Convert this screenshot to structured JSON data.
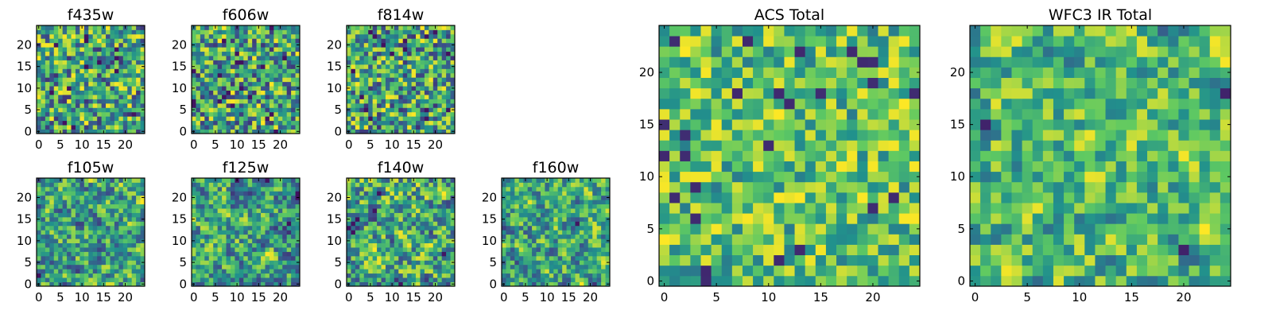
{
  "chart_data": [
    {
      "type": "heatmap",
      "title": "f435w",
      "size": 25,
      "colormap": "viridis",
      "ticks": [
        0,
        5,
        10,
        15,
        20
      ],
      "xlim": [
        0,
        24
      ],
      "ylim": [
        0,
        24
      ],
      "seed": 11,
      "smooth": 0,
      "vmin_frac": 0.15
    },
    {
      "type": "heatmap",
      "title": "f606w",
      "size": 25,
      "colormap": "viridis",
      "ticks": [
        0,
        5,
        10,
        15,
        20
      ],
      "xlim": [
        0,
        24
      ],
      "ylim": [
        0,
        24
      ],
      "seed": 23,
      "smooth": 0,
      "vmin_frac": 0.15
    },
    {
      "type": "heatmap",
      "title": "f814w",
      "size": 25,
      "colormap": "viridis",
      "ticks": [
        0,
        5,
        10,
        15,
        20
      ],
      "xlim": [
        0,
        24
      ],
      "ylim": [
        0,
        24
      ],
      "seed": 37,
      "smooth": 0,
      "vmin_frac": 0.15
    },
    {
      "type": "heatmap",
      "title": "f105w",
      "size": 25,
      "colormap": "viridis",
      "ticks": [
        0,
        5,
        10,
        15,
        20
      ],
      "xlim": [
        0,
        24
      ],
      "ylim": [
        0,
        24
      ],
      "seed": 41,
      "smooth": 1,
      "vmin_frac": 0.15
    },
    {
      "type": "heatmap",
      "title": "f125w",
      "size": 25,
      "colormap": "viridis",
      "ticks": [
        0,
        5,
        10,
        15,
        20
      ],
      "xlim": [
        0,
        24
      ],
      "ylim": [
        0,
        24
      ],
      "seed": 53,
      "smooth": 1,
      "vmin_frac": 0.15
    },
    {
      "type": "heatmap",
      "title": "f140w",
      "size": 25,
      "colormap": "viridis",
      "ticks": [
        0,
        5,
        10,
        15,
        20
      ],
      "xlim": [
        0,
        24
      ],
      "ylim": [
        0,
        24
      ],
      "seed": 67,
      "smooth": 1,
      "vmin_frac": 0.15
    },
    {
      "type": "heatmap",
      "title": "f160w",
      "size": 25,
      "colormap": "viridis",
      "ticks": [
        0,
        5,
        10,
        15,
        20
      ],
      "xlim": [
        0,
        24
      ],
      "ylim": [
        0,
        24
      ],
      "seed": 79,
      "smooth": 1,
      "vmin_frac": 0.15
    },
    {
      "type": "heatmap",
      "title": "ACS Total",
      "size": 25,
      "colormap": "viridis",
      "ticks": [
        0,
        5,
        10,
        15,
        20
      ],
      "xlim": [
        0,
        24
      ],
      "ylim": [
        0,
        24
      ],
      "seed": 97,
      "smooth": 0,
      "vmin_frac": 0.4
    },
    {
      "type": "heatmap",
      "title": "WFC3 IR Total",
      "size": 25,
      "colormap": "viridis",
      "ticks": [
        0,
        5,
        10,
        15,
        20
      ],
      "xlim": [
        0,
        24
      ],
      "ylim": [
        0,
        24
      ],
      "seed": 113,
      "smooth": 1,
      "vmin_frac": 0.3
    }
  ],
  "colors": {
    "viridis_stops": [
      "#440154",
      "#3b528b",
      "#21918c",
      "#5ec962",
      "#fde725"
    ]
  }
}
